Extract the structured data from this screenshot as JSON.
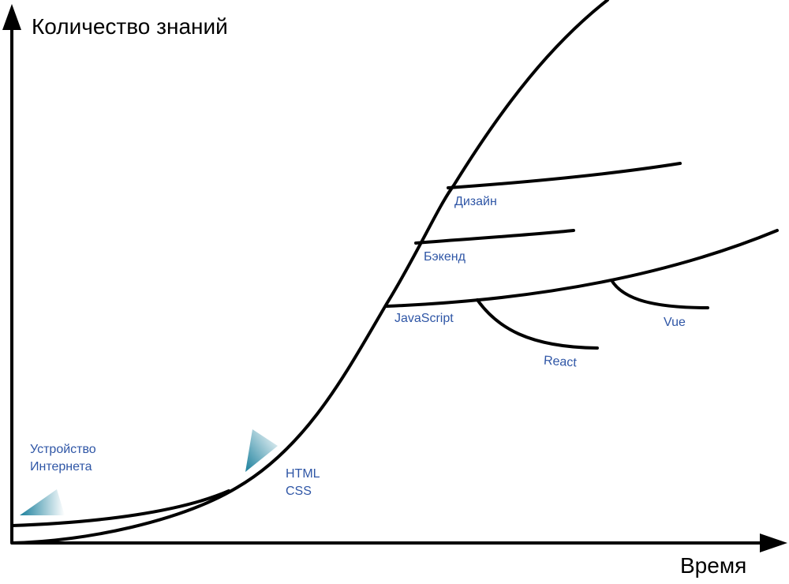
{
  "axes": {
    "y_title": "Количество знаний",
    "x_title": "Время"
  },
  "labels": {
    "internet": [
      "Устройство",
      "Интернета"
    ],
    "html_css": [
      "HTML",
      "CSS"
    ],
    "javascript": "JavaScript",
    "react": "React",
    "vue": "Vue",
    "backend": "Бэкенд",
    "design": "Дизайн"
  },
  "colors": {
    "line": "#000000",
    "label": "#2f56a6",
    "marker": "#1e87a3"
  }
}
